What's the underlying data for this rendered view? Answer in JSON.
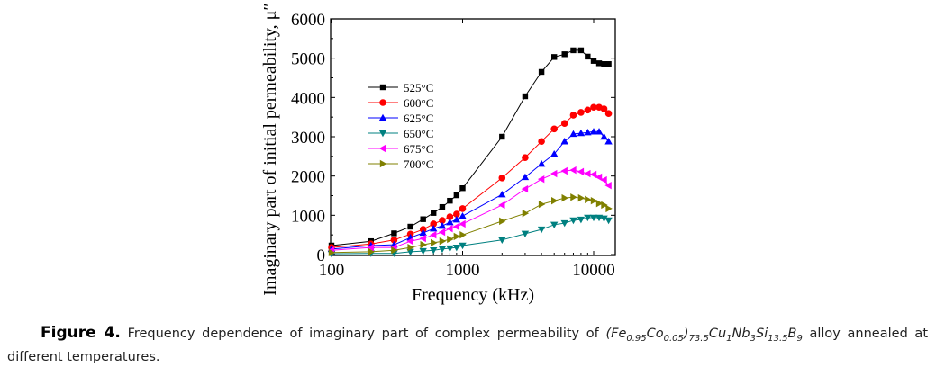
{
  "chart_data": {
    "type": "line",
    "title": "",
    "xlabel": "Frequency (kHz)",
    "ylabel": "Imaginary part of initial permeability, μ″",
    "xscale": "log",
    "xlim": [
      100,
      14000
    ],
    "ylim": [
      0,
      6000
    ],
    "xticks": [
      100,
      1000,
      10000
    ],
    "xtick_labels": [
      "100",
      "1000",
      "10000"
    ],
    "yticks": [
      0,
      1000,
      2000,
      3000,
      4000,
      5000,
      6000
    ],
    "ytick_labels": [
      "0",
      "1000",
      "2000",
      "3000",
      "4000",
      "5000",
      "6000"
    ],
    "grid": false,
    "legend_position": "upper-left (inside)",
    "x": [
      100,
      200,
      300,
      400,
      500,
      600,
      700,
      800,
      900,
      1000,
      2000,
      3000,
      4000,
      5000,
      6000,
      7000,
      8000,
      9000,
      10000,
      11000,
      12000,
      13000
    ],
    "series": [
      {
        "name": "525°C",
        "color": "#000000",
        "marker": "square",
        "values": [
          230,
          340,
          540,
          710,
          900,
          1060,
          1210,
          1370,
          1510,
          1690,
          3000,
          4030,
          4650,
          5030,
          5100,
          5200,
          5200,
          5040,
          4930,
          4870,
          4850,
          4850
        ]
      },
      {
        "name": "600°C",
        "color": "#ff0000",
        "marker": "circle",
        "values": [
          180,
          270,
          370,
          520,
          640,
          780,
          870,
          960,
          1030,
          1170,
          1950,
          2470,
          2880,
          3200,
          3340,
          3550,
          3620,
          3680,
          3750,
          3750,
          3710,
          3590
        ]
      },
      {
        "name": "625°C",
        "color": "#0000ff",
        "marker": "triangle-up",
        "values": [
          140,
          230,
          250,
          430,
          550,
          660,
          730,
          820,
          890,
          980,
          1530,
          1970,
          2310,
          2560,
          2880,
          3070,
          3090,
          3110,
          3130,
          3130,
          3000,
          2880
        ]
      },
      {
        "name": "650°C",
        "color": "#008080",
        "marker": "triangle-down",
        "values": [
          20,
          30,
          30,
          70,
          90,
          110,
          140,
          160,
          180,
          230,
          370,
          530,
          640,
          760,
          800,
          870,
          890,
          940,
          940,
          940,
          920,
          870
        ]
      },
      {
        "name": "675°C",
        "color": "#ff00ff",
        "marker": "triangle-left",
        "values": [
          110,
          180,
          180,
          340,
          410,
          500,
          570,
          660,
          710,
          780,
          1260,
          1670,
          1920,
          2060,
          2130,
          2150,
          2110,
          2060,
          2040,
          1970,
          1900,
          1760
        ]
      },
      {
        "name": "700°C",
        "color": "#808000",
        "marker": "triangle-right",
        "values": [
          50,
          70,
          110,
          180,
          250,
          300,
          340,
          390,
          460,
          500,
          850,
          1050,
          1280,
          1370,
          1440,
          1460,
          1440,
          1400,
          1370,
          1300,
          1260,
          1170
        ]
      }
    ]
  },
  "caption": {
    "label": "Figure 4.",
    "text_before": "Frequency dependence of imaginary part of complex permeability of",
    "formula_parts": [
      {
        "t": "(Fe",
        "sub": "0.95"
      },
      {
        "t": "Co",
        "sub": "0.05"
      },
      {
        "t": ")",
        "sub": "73.5"
      },
      {
        "t": "Cu",
        "sub": "1"
      },
      {
        "t": "Nb",
        "sub": "3"
      },
      {
        "t": "Si",
        "sub": "13.5"
      },
      {
        "t": "B",
        "sub": "9"
      }
    ],
    "text_after": "alloy annealed at different temperatures."
  }
}
